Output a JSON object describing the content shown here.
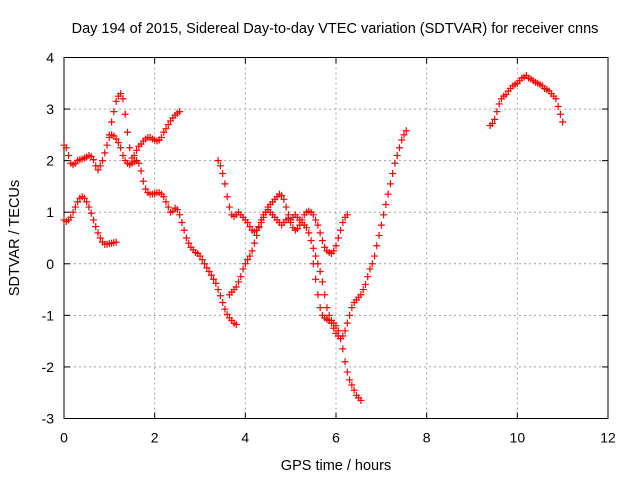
{
  "chart_data": {
    "type": "scatter",
    "title": "Day 194 of 2015, Sidereal Day-to-day VTEC variation (SDTVAR) for receiver cnns",
    "xlabel": "GPS time / hours",
    "ylabel": "SDTVAR / TECUs",
    "xlim": [
      0,
      12
    ],
    "ylim": [
      -3,
      4
    ],
    "xticks": [
      "0",
      "2",
      "4",
      "6",
      "8",
      "10",
      "12"
    ],
    "yticks": [
      "-3",
      "-2",
      "-1",
      "0",
      "1",
      "2",
      "3",
      "4"
    ],
    "grid": true,
    "marker": "plus",
    "color": "#ff0000",
    "series": [
      {
        "x": [
          0.0,
          0.05,
          0.1,
          0.15,
          0.2,
          0.25,
          0.3,
          0.35,
          0.4,
          0.45,
          0.5,
          0.55,
          0.6,
          0.65,
          0.7,
          0.75,
          0.8,
          0.85,
          0.9,
          0.95,
          1.0,
          1.05,
          1.1,
          1.15,
          1.2,
          1.25,
          1.3,
          1.35,
          1.4,
          1.45,
          1.5,
          1.55,
          1.6,
          1.65,
          1.7,
          1.75,
          1.8,
          1.85,
          1.9,
          1.95,
          2.0,
          2.05,
          2.1,
          2.15,
          2.2,
          2.25,
          2.3,
          2.35,
          2.4,
          2.45,
          2.5,
          2.55
        ],
        "y": [
          2.3,
          2.25,
          2.1,
          1.95,
          1.92,
          1.95,
          2.0,
          2.02,
          2.03,
          2.05,
          2.07,
          2.1,
          2.08,
          2.02,
          1.9,
          1.82,
          1.9,
          2.0,
          2.15,
          2.3,
          2.5,
          2.75,
          2.95,
          3.15,
          3.25,
          3.3,
          3.2,
          2.9,
          2.55,
          2.25,
          2.05,
          2.1,
          2.2,
          2.28,
          2.32,
          2.38,
          2.42,
          2.45,
          2.45,
          2.42,
          2.4,
          2.38,
          2.4,
          2.45,
          2.55,
          2.62,
          2.7,
          2.77,
          2.83,
          2.88,
          2.92,
          2.95
        ]
      },
      {
        "x": [
          0.0,
          0.05,
          0.1,
          0.15,
          0.2,
          0.25,
          0.3,
          0.35,
          0.4,
          0.45,
          0.5,
          0.55,
          0.6,
          0.65,
          0.7,
          0.75,
          0.8,
          0.85,
          0.9,
          0.95,
          1.0,
          1.05,
          1.1,
          1.15
        ],
        "y": [
          0.85,
          0.82,
          0.85,
          0.9,
          1.0,
          1.1,
          1.2,
          1.27,
          1.3,
          1.27,
          1.2,
          1.1,
          0.98,
          0.85,
          0.72,
          0.6,
          0.5,
          0.42,
          0.38,
          0.38,
          0.39,
          0.4,
          0.41,
          0.42
        ]
      },
      {
        "x": [
          1.0,
          1.05,
          1.1,
          1.15,
          1.2,
          1.25,
          1.3,
          1.35,
          1.4,
          1.45,
          1.5,
          1.55,
          1.6,
          1.65,
          1.7,
          1.75,
          1.8,
          1.85,
          1.9,
          1.95,
          2.0,
          2.05,
          2.1,
          2.15,
          2.2,
          2.25,
          2.3,
          2.35,
          2.4,
          2.45,
          2.5,
          2.55,
          2.6,
          2.65,
          2.7,
          2.75,
          2.8,
          2.85,
          2.9,
          2.95,
          3.0,
          3.05,
          3.1,
          3.15,
          3.2,
          3.25,
          3.3,
          3.35,
          3.4,
          3.45,
          3.5,
          3.55,
          3.6,
          3.65,
          3.7,
          3.75,
          3.8
        ],
        "y": [
          2.45,
          2.5,
          2.48,
          2.42,
          2.35,
          2.25,
          2.1,
          2.0,
          1.95,
          1.92,
          1.95,
          1.98,
          2.0,
          1.95,
          1.8,
          1.6,
          1.45,
          1.38,
          1.35,
          1.35,
          1.36,
          1.38,
          1.38,
          1.35,
          1.3,
          1.2,
          1.1,
          1.0,
          1.02,
          1.08,
          1.05,
          0.95,
          0.8,
          0.65,
          0.5,
          0.4,
          0.32,
          0.27,
          0.22,
          0.2,
          0.15,
          0.08,
          0.0,
          -0.08,
          -0.15,
          -0.22,
          -0.3,
          -0.38,
          -0.5,
          -0.62,
          -0.75,
          -0.88,
          -0.98,
          -1.05,
          -1.1,
          -1.15,
          -1.18
        ]
      },
      {
        "x": [
          3.4,
          3.45,
          3.5,
          3.55,
          3.6,
          3.65,
          3.7,
          3.75,
          3.8,
          3.85,
          3.9,
          3.95,
          4.0,
          4.05,
          4.1,
          4.15,
          4.2,
          4.25,
          4.3,
          4.35,
          4.4,
          4.45,
          4.5,
          4.55,
          4.6,
          4.65,
          4.7,
          4.75,
          4.8,
          4.85,
          4.9,
          4.95,
          5.0,
          5.05,
          5.1,
          5.15,
          5.2,
          5.25,
          5.3,
          5.35,
          5.4,
          5.45,
          5.5,
          5.55,
          5.6,
          5.65,
          5.7,
          5.75,
          5.8,
          5.85,
          5.9,
          5.95,
          6.0,
          6.05,
          6.1,
          6.15,
          6.2,
          6.25
        ],
        "y": [
          2.0,
          1.9,
          1.75,
          1.55,
          1.3,
          1.1,
          0.95,
          0.92,
          0.95,
          1.0,
          0.95,
          0.9,
          0.85,
          0.8,
          0.72,
          0.65,
          0.62,
          0.65,
          0.72,
          0.8,
          0.9,
          1.0,
          1.1,
          1.15,
          1.2,
          1.25,
          1.3,
          1.35,
          1.32,
          1.25,
          1.1,
          0.95,
          0.8,
          0.7,
          0.65,
          0.68,
          0.75,
          0.85,
          0.95,
          1.0,
          1.02,
          1.0,
          0.95,
          0.85,
          0.75,
          0.6,
          0.45,
          0.32,
          0.25,
          0.22,
          0.2,
          0.25,
          0.35,
          0.5,
          0.65,
          0.8,
          0.9,
          0.95
        ]
      },
      {
        "x": [
          3.65,
          3.7,
          3.75,
          3.8,
          3.85,
          3.9,
          3.95,
          4.0,
          4.05,
          4.1,
          4.15,
          4.2,
          4.25,
          4.3,
          4.35,
          4.4,
          4.45,
          4.5,
          4.55,
          4.6,
          4.65,
          4.7,
          4.75,
          4.8,
          4.85,
          4.9,
          4.95,
          5.0,
          5.05,
          5.1,
          5.15,
          5.2,
          5.25,
          5.3,
          5.35,
          5.4,
          5.45,
          5.5,
          5.55,
          5.6,
          5.65,
          5.7,
          5.75,
          5.8,
          5.85,
          5.9,
          5.95,
          6.0,
          6.05,
          6.1,
          6.15,
          6.2,
          6.25,
          6.3,
          6.35,
          6.4,
          6.45,
          6.5,
          6.55
        ],
        "y": [
          -0.6,
          -0.55,
          -0.5,
          -0.45,
          -0.35,
          -0.25,
          -0.1,
          0.0,
          0.08,
          0.15,
          0.25,
          0.4,
          0.55,
          0.7,
          0.85,
          0.95,
          1.0,
          1.05,
          1.0,
          0.95,
          0.9,
          0.85,
          0.8,
          0.75,
          0.8,
          0.85,
          0.88,
          0.85,
          0.9,
          0.95,
          0.9,
          0.85,
          0.8,
          0.75,
          0.7,
          0.6,
          0.45,
          0.3,
          0.15,
          0.0,
          -0.15,
          -0.35,
          -0.6,
          -0.85,
          -1.0,
          -1.1,
          -1.15,
          -1.2,
          -1.3,
          -1.45,
          -1.65,
          -1.9,
          -2.1,
          -2.25,
          -2.35,
          -2.45,
          -2.55,
          -2.6,
          -2.65
        ]
      },
      {
        "x": [
          5.5,
          5.55,
          5.6,
          5.65,
          5.7,
          5.75,
          5.8,
          5.85,
          5.9,
          5.95,
          6.0,
          6.05,
          6.1,
          6.15,
          6.2,
          6.25,
          6.3,
          6.35,
          6.4,
          6.45,
          6.5,
          6.55,
          6.6,
          6.65,
          6.7,
          6.75,
          6.8,
          6.85,
          6.9,
          6.95,
          7.0,
          7.05,
          7.1,
          7.15,
          7.2,
          7.25,
          7.3,
          7.35,
          7.4,
          7.45,
          7.5,
          7.55
        ],
        "y": [
          0.0,
          -0.3,
          -0.6,
          -0.85,
          -1.0,
          -1.05,
          -1.08,
          -1.1,
          -1.15,
          -1.25,
          -1.35,
          -1.4,
          -1.45,
          -1.4,
          -1.3,
          -1.15,
          -1.0,
          -0.85,
          -0.75,
          -0.7,
          -0.65,
          -0.6,
          -0.5,
          -0.4,
          -0.25,
          -0.1,
          0.0,
          0.15,
          0.35,
          0.55,
          0.75,
          0.95,
          1.15,
          1.35,
          1.55,
          1.75,
          1.95,
          2.1,
          2.25,
          2.4,
          2.5,
          2.58
        ]
      },
      {
        "x": [
          9.4,
          9.45,
          9.5,
          9.55,
          9.6,
          9.65,
          9.7,
          9.75,
          9.8,
          9.85,
          9.9,
          9.95,
          10.0,
          10.05,
          10.1,
          10.15,
          10.2,
          10.25,
          10.3,
          10.35,
          10.4,
          10.45,
          10.5,
          10.55,
          10.6,
          10.65,
          10.7,
          10.75,
          10.8,
          10.85,
          10.9,
          10.95,
          11.0
        ],
        "y": [
          2.68,
          2.72,
          2.8,
          2.95,
          3.1,
          3.2,
          3.25,
          3.28,
          3.35,
          3.4,
          3.45,
          3.48,
          3.5,
          3.55,
          3.6,
          3.62,
          3.65,
          3.6,
          3.58,
          3.55,
          3.52,
          3.5,
          3.48,
          3.45,
          3.4,
          3.38,
          3.35,
          3.3,
          3.25,
          3.2,
          3.05,
          2.9,
          2.75
        ]
      }
    ]
  }
}
